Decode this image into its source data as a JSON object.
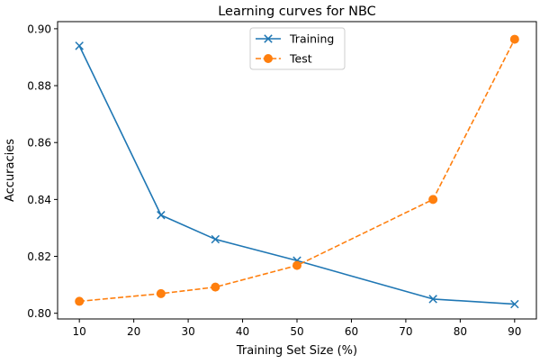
{
  "chart_data": {
    "type": "line",
    "title": "Learning curves for NBC",
    "xlabel": "Training Set Size (%)",
    "ylabel": "Accuracies",
    "xlim": [
      6,
      94
    ],
    "ylim": [
      0.798,
      0.9025
    ],
    "xticks": [
      10,
      20,
      30,
      40,
      50,
      60,
      70,
      80,
      90
    ],
    "yticks": [
      0.8,
      0.82,
      0.84,
      0.86,
      0.88,
      0.9
    ],
    "ytick_labels": [
      "0.80",
      "0.82",
      "0.84",
      "0.86",
      "0.88",
      "0.90"
    ],
    "grid": false,
    "legend_position": "top-center",
    "x": [
      10,
      25,
      35,
      50,
      75,
      90
    ],
    "series": [
      {
        "name": "Training",
        "values": [
          0.894,
          0.8345,
          0.826,
          0.8185,
          0.805,
          0.8032
        ],
        "color": "#1f77b4",
        "line_style": "solid",
        "marker": "x"
      },
      {
        "name": "Test",
        "values": [
          0.8042,
          0.8069,
          0.8092,
          0.8168,
          0.84,
          0.8963
        ],
        "color": "#ff7f0e",
        "line_style": "dashed",
        "marker": "circle"
      }
    ]
  }
}
